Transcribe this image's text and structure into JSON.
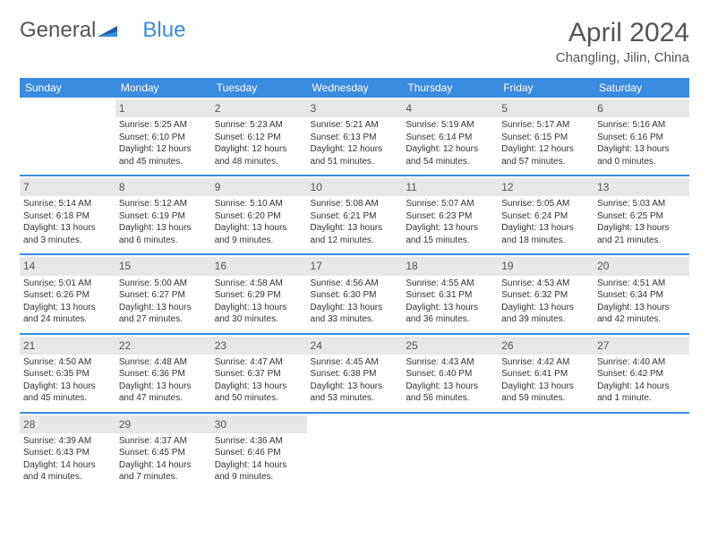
{
  "logo": {
    "text_general": "General",
    "text_blue": "Blue"
  },
  "title": "April 2024",
  "location": "Changling, Jilin, China",
  "colors": {
    "header_bg": "#3a8dde",
    "header_text": "#ffffff",
    "daynum_bg": "#e7e7e7",
    "border": "#3a8dde",
    "body_text": "#333333"
  },
  "weekdays": [
    "Sunday",
    "Monday",
    "Tuesday",
    "Wednesday",
    "Thursday",
    "Friday",
    "Saturday"
  ],
  "days": {
    "1": {
      "sunrise": "Sunrise: 5:25 AM",
      "sunset": "Sunset: 6:10 PM",
      "daylight": "Daylight: 12 hours and 45 minutes."
    },
    "2": {
      "sunrise": "Sunrise: 5:23 AM",
      "sunset": "Sunset: 6:12 PM",
      "daylight": "Daylight: 12 hours and 48 minutes."
    },
    "3": {
      "sunrise": "Sunrise: 5:21 AM",
      "sunset": "Sunset: 6:13 PM",
      "daylight": "Daylight: 12 hours and 51 minutes."
    },
    "4": {
      "sunrise": "Sunrise: 5:19 AM",
      "sunset": "Sunset: 6:14 PM",
      "daylight": "Daylight: 12 hours and 54 minutes."
    },
    "5": {
      "sunrise": "Sunrise: 5:17 AM",
      "sunset": "Sunset: 6:15 PM",
      "daylight": "Daylight: 12 hours and 57 minutes."
    },
    "6": {
      "sunrise": "Sunrise: 5:16 AM",
      "sunset": "Sunset: 6:16 PM",
      "daylight": "Daylight: 13 hours and 0 minutes."
    },
    "7": {
      "sunrise": "Sunrise: 5:14 AM",
      "sunset": "Sunset: 6:18 PM",
      "daylight": "Daylight: 13 hours and 3 minutes."
    },
    "8": {
      "sunrise": "Sunrise: 5:12 AM",
      "sunset": "Sunset: 6:19 PM",
      "daylight": "Daylight: 13 hours and 6 minutes."
    },
    "9": {
      "sunrise": "Sunrise: 5:10 AM",
      "sunset": "Sunset: 6:20 PM",
      "daylight": "Daylight: 13 hours and 9 minutes."
    },
    "10": {
      "sunrise": "Sunrise: 5:08 AM",
      "sunset": "Sunset: 6:21 PM",
      "daylight": "Daylight: 13 hours and 12 minutes."
    },
    "11": {
      "sunrise": "Sunrise: 5:07 AM",
      "sunset": "Sunset: 6:23 PM",
      "daylight": "Daylight: 13 hours and 15 minutes."
    },
    "12": {
      "sunrise": "Sunrise: 5:05 AM",
      "sunset": "Sunset: 6:24 PM",
      "daylight": "Daylight: 13 hours and 18 minutes."
    },
    "13": {
      "sunrise": "Sunrise: 5:03 AM",
      "sunset": "Sunset: 6:25 PM",
      "daylight": "Daylight: 13 hours and 21 minutes."
    },
    "14": {
      "sunrise": "Sunrise: 5:01 AM",
      "sunset": "Sunset: 6:26 PM",
      "daylight": "Daylight: 13 hours and 24 minutes."
    },
    "15": {
      "sunrise": "Sunrise: 5:00 AM",
      "sunset": "Sunset: 6:27 PM",
      "daylight": "Daylight: 13 hours and 27 minutes."
    },
    "16": {
      "sunrise": "Sunrise: 4:58 AM",
      "sunset": "Sunset: 6:29 PM",
      "daylight": "Daylight: 13 hours and 30 minutes."
    },
    "17": {
      "sunrise": "Sunrise: 4:56 AM",
      "sunset": "Sunset: 6:30 PM",
      "daylight": "Daylight: 13 hours and 33 minutes."
    },
    "18": {
      "sunrise": "Sunrise: 4:55 AM",
      "sunset": "Sunset: 6:31 PM",
      "daylight": "Daylight: 13 hours and 36 minutes."
    },
    "19": {
      "sunrise": "Sunrise: 4:53 AM",
      "sunset": "Sunset: 6:32 PM",
      "daylight": "Daylight: 13 hours and 39 minutes."
    },
    "20": {
      "sunrise": "Sunrise: 4:51 AM",
      "sunset": "Sunset: 6:34 PM",
      "daylight": "Daylight: 13 hours and 42 minutes."
    },
    "21": {
      "sunrise": "Sunrise: 4:50 AM",
      "sunset": "Sunset: 6:35 PM",
      "daylight": "Daylight: 13 hours and 45 minutes."
    },
    "22": {
      "sunrise": "Sunrise: 4:48 AM",
      "sunset": "Sunset: 6:36 PM",
      "daylight": "Daylight: 13 hours and 47 minutes."
    },
    "23": {
      "sunrise": "Sunrise: 4:47 AM",
      "sunset": "Sunset: 6:37 PM",
      "daylight": "Daylight: 13 hours and 50 minutes."
    },
    "24": {
      "sunrise": "Sunrise: 4:45 AM",
      "sunset": "Sunset: 6:38 PM",
      "daylight": "Daylight: 13 hours and 53 minutes."
    },
    "25": {
      "sunrise": "Sunrise: 4:43 AM",
      "sunset": "Sunset: 6:40 PM",
      "daylight": "Daylight: 13 hours and 56 minutes."
    },
    "26": {
      "sunrise": "Sunrise: 4:42 AM",
      "sunset": "Sunset: 6:41 PM",
      "daylight": "Daylight: 13 hours and 59 minutes."
    },
    "27": {
      "sunrise": "Sunrise: 4:40 AM",
      "sunset": "Sunset: 6:42 PM",
      "daylight": "Daylight: 14 hours and 1 minute."
    },
    "28": {
      "sunrise": "Sunrise: 4:39 AM",
      "sunset": "Sunset: 6:43 PM",
      "daylight": "Daylight: 14 hours and 4 minutes."
    },
    "29": {
      "sunrise": "Sunrise: 4:37 AM",
      "sunset": "Sunset: 6:45 PM",
      "daylight": "Daylight: 14 hours and 7 minutes."
    },
    "30": {
      "sunrise": "Sunrise: 4:36 AM",
      "sunset": "Sunset: 6:46 PM",
      "daylight": "Daylight: 14 hours and 9 minutes."
    }
  },
  "layout": {
    "start_offset": 1,
    "num_days": 30,
    "rows": 5
  }
}
